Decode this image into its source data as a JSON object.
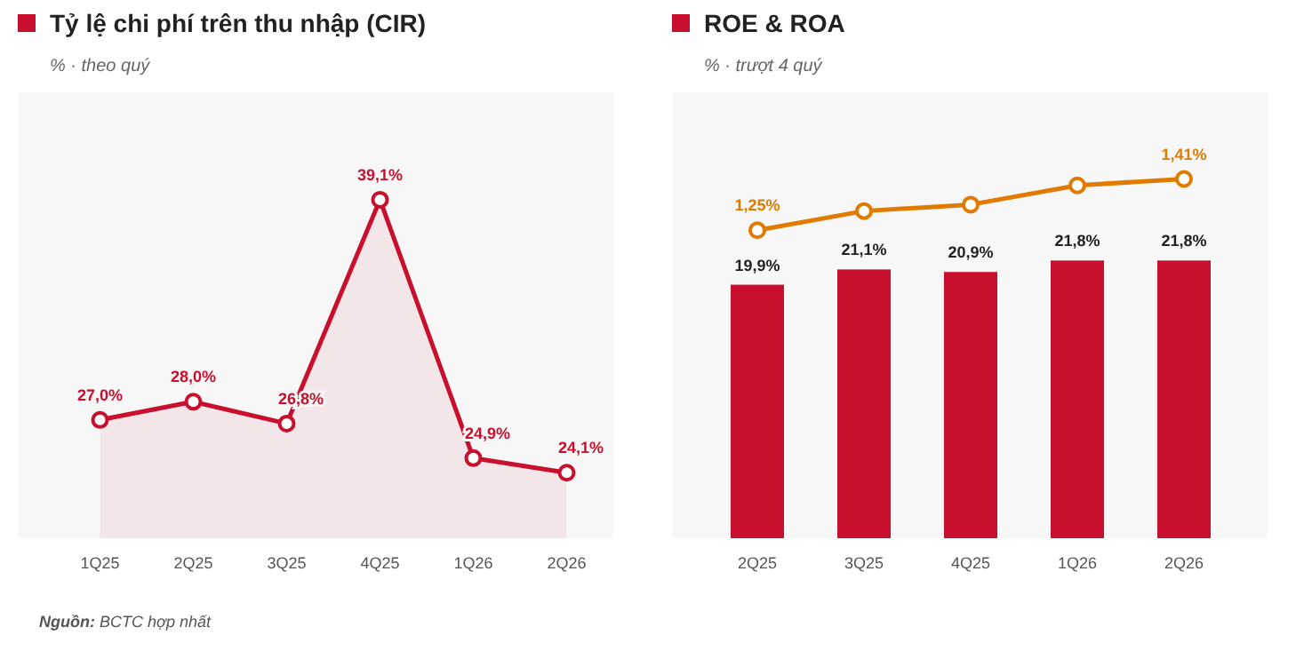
{
  "chart_data": [
    {
      "type": "area",
      "title": "Tỷ lệ chi phí trên thu nhập (CIR)",
      "subtitle": "% · theo quý",
      "categories": [
        "1Q25",
        "2Q25",
        "3Q25",
        "4Q25",
        "1Q26",
        "2Q26"
      ],
      "values": [
        27.0,
        28.0,
        26.8,
        39.1,
        24.9,
        24.1
      ],
      "value_labels": [
        "27,0%",
        "28,0%",
        "26,8%",
        "39,1%",
        "24,9%",
        "24,1%"
      ],
      "color": "#c8102e",
      "marker": "circle",
      "ylim": [
        20.5,
        45
      ],
      "tick_labels": "x",
      "annotations": [
        "Nguồn: BCTC hợp nhất"
      ]
    },
    {
      "type": "bar",
      "title": "ROE & ROA",
      "subtitle": "% · trượt 4 quý",
      "categories": [
        "2Q25",
        "3Q25",
        "4Q25",
        "1Q26",
        "2Q26"
      ],
      "series": [
        {
          "color": "#c8102e",
          "values": [
            19.9,
            21.1,
            20.9,
            21.8,
            21.8
          ],
          "value_labels": [
            "19,9%",
            "21,1%",
            "20,9%",
            "21,8%",
            "21,8%"
          ]
        },
        {
          "type": "line",
          "axis": "y2",
          "color": "#e07b00",
          "values": [
            1.25,
            1.31,
            1.33,
            1.39,
            1.41
          ],
          "value_labels": [
            "1,25%",
            null,
            null,
            null,
            "1,41%"
          ]
        }
      ],
      "marker": "circle",
      "ylim": [
        0,
        35
      ],
      "y2lim": [
        0.29,
        1.68
      ],
      "tick_labels": "x"
    }
  ]
}
